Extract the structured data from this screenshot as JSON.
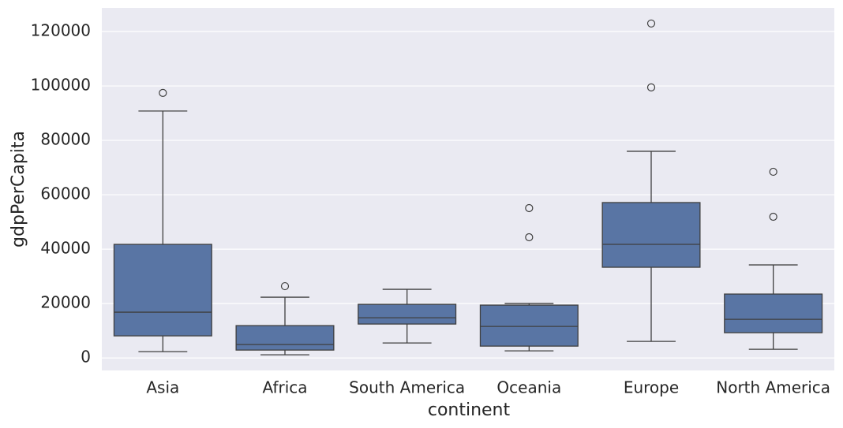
{
  "chart_data": {
    "type": "box",
    "x_label": "continent",
    "y_label": "gdpPerCapita",
    "categories": [
      "Asia",
      "Africa",
      "South America",
      "Oceania",
      "Europe",
      "North America"
    ],
    "color": "#5975a4",
    "grid": true,
    "ylim": [
      -4600,
      128700
    ],
    "yticks": [
      0,
      20000,
      40000,
      60000,
      80000,
      100000,
      120000
    ],
    "boxes": [
      {
        "min": 2320,
        "q1": 8120,
        "median": 16820,
        "q3": 41760,
        "max": 90770,
        "outliers": [
          97440
        ]
      },
      {
        "min": 1160,
        "q1": 2900,
        "median": 4930,
        "q3": 11890,
        "max": 22330,
        "outliers": [
          26390
        ]
      },
      {
        "min": 5510,
        "q1": 12470,
        "median": 14790,
        "q3": 19720,
        "max": 25230,
        "outliers": []
      },
      {
        "min": 2610,
        "q1": 4350,
        "median": 11600,
        "q3": 19430,
        "max": 20010,
        "outliers": [
          44370,
          55100
        ]
      },
      {
        "min": 6090,
        "q1": 33350,
        "median": 41760,
        "q3": 57130,
        "max": 75980,
        "outliers": [
          99470,
          122960
        ]
      },
      {
        "min": 3190,
        "q1": 9280,
        "median": 14210,
        "q3": 23490,
        "max": 34220,
        "outliers": [
          51910,
          68440
        ]
      }
    ]
  }
}
